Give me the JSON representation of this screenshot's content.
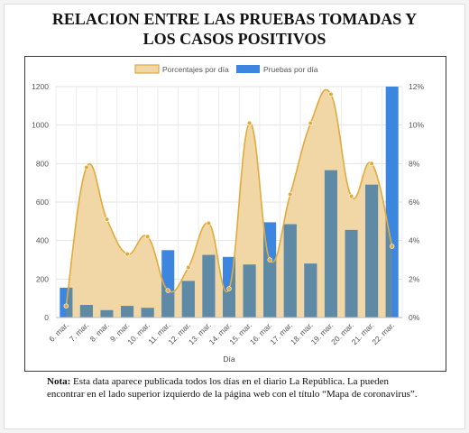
{
  "title_line1": "RELACION ENTRE LAS PRUEBAS TOMADAS Y",
  "title_line2": "LOS CASOS POSITIVOS",
  "note_label": "Nota:",
  "note_text": " Esta data aparece publicada todos los días en el diario La República. La pueden encontrar en el lado superior izquierdo de la página web con el título “Mapa de coronavirus”.",
  "colors": {
    "area_fill": "#f2d7a6",
    "area_line": "#e0ab3c",
    "bar_blue": "#3d86e0",
    "bar_over_area": "#5f8aa6"
  },
  "chart_data": {
    "type": "bar",
    "title": "",
    "xlabel": "Día",
    "ylabel": "",
    "categories": [
      "6. mar.",
      "7. mar.",
      "8. mar.",
      "9. mar.",
      "10. mar.",
      "11. mar.",
      "12. mar.",
      "13. mar.",
      "14. mar.",
      "15. mar.",
      "16. mar.",
      "17. mar.",
      "18. mar.",
      "19. mar.",
      "20. mar.",
      "21. mar.",
      "22. mar."
    ],
    "ylim_left": [
      0,
      1200
    ],
    "left_ticks": [
      "0",
      "200",
      "400",
      "600",
      "800",
      "1000",
      "1200"
    ],
    "ylim_right": [
      0,
      12
    ],
    "right_ticks": [
      "0%",
      "2%",
      "4%",
      "6%",
      "8%",
      "10%",
      "12%"
    ],
    "grid": true,
    "legend_position": "top-center",
    "series": [
      {
        "name": "Porcentajes por día",
        "kind": "area",
        "axis": "right",
        "values": [
          0.6,
          7.8,
          5.1,
          3.3,
          4.2,
          1.4,
          2.6,
          4.9,
          1.5,
          10.1,
          3.0,
          6.4,
          10.1,
          11.6,
          6.3,
          8.0,
          3.7
        ]
      },
      {
        "name": "Pruebas por día",
        "kind": "bar",
        "axis": "left",
        "values": [
          155,
          65,
          38,
          60,
          50,
          350,
          190,
          325,
          315,
          275,
          495,
          485,
          280,
          765,
          455,
          690,
          1200
        ]
      }
    ]
  }
}
